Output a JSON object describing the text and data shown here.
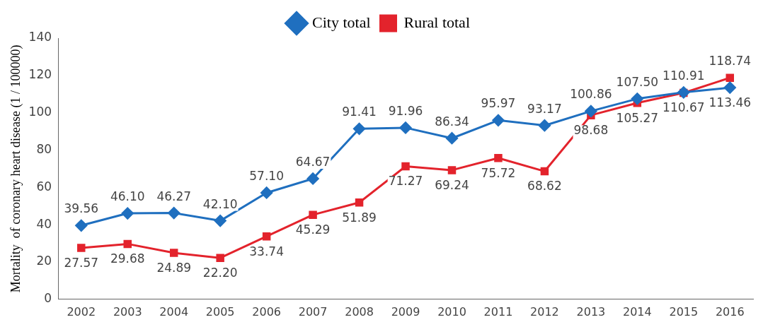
{
  "chart_data": {
    "type": "line",
    "ylabel": "Mortality  of coronary heart disease (1 / 100000)",
    "categories": [
      "2002",
      "2003",
      "2004",
      "2005",
      "2006",
      "2007",
      "2008",
      "2009",
      "2010",
      "2011",
      "2012",
      "2013",
      "2014",
      "2015",
      "2016"
    ],
    "series": [
      {
        "name": "City total",
        "color": "#1f6fbf",
        "marker": "diamond",
        "values": [
          39.56,
          46.1,
          46.27,
          42.1,
          57.1,
          64.67,
          91.41,
          91.96,
          86.34,
          95.97,
          93.17,
          100.86,
          107.5,
          110.91,
          113.46
        ],
        "value_labels": [
          "39.56",
          "46.10",
          "46.27",
          "42.10",
          "57.10",
          "64.67",
          "91.41",
          "91.96",
          "86.34",
          "95.97",
          "93.17",
          "100.86",
          "107.50",
          "110.91",
          "113.46"
        ]
      },
      {
        "name": "Rural total",
        "color": "#e3232c",
        "marker": "square",
        "values": [
          27.57,
          29.68,
          24.89,
          22.2,
          33.74,
          45.29,
          51.89,
          71.27,
          69.24,
          75.72,
          68.62,
          98.68,
          105.27,
          110.67,
          118.74
        ],
        "value_labels": [
          "27.57",
          "29.68",
          "24.89",
          "22.20",
          "33.74",
          "45.29",
          "51.89",
          "71.27",
          "69.24",
          "75.72",
          "68.62",
          "98.68",
          "105.27",
          "110.67",
          "118.74"
        ]
      }
    ],
    "ylim": [
      0,
      140
    ],
    "yticks": [
      0,
      20,
      40,
      60,
      80,
      100,
      120,
      140
    ],
    "grid": false,
    "legend": "top",
    "line_style": "solid"
  }
}
